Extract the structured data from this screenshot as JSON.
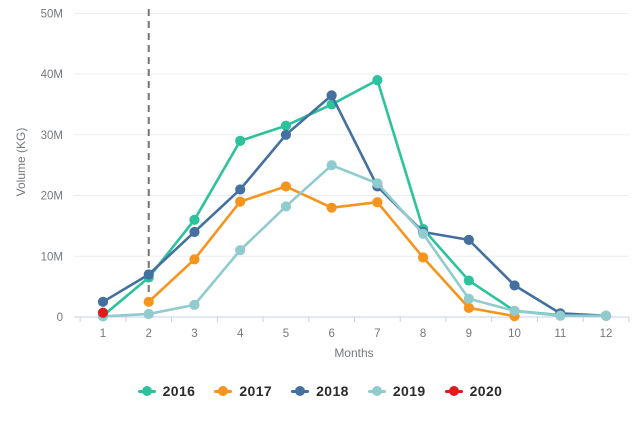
{
  "page": {
    "background": "#ffffff"
  },
  "chart_data": {
    "type": "line",
    "title": "",
    "xlabel": "Months",
    "ylabel": "Volume (KG)",
    "x": [
      1,
      2,
      3,
      4,
      5,
      6,
      7,
      8,
      9,
      10,
      11,
      12
    ],
    "ylim_millions": [
      0,
      50
    ],
    "ytick_labels": [
      "0",
      "10M",
      "20M",
      "30M",
      "40M",
      "50M"
    ],
    "grid": true,
    "legend_position": "bottom",
    "reference_line": {
      "type": "vertical",
      "style": "dashed",
      "x": 2,
      "color": "#757575"
    },
    "colors": {
      "axis": "#c7d0e4",
      "grid": "#ededed",
      "labels": "#74787c"
    },
    "series": [
      {
        "name": "2016",
        "color": "#2cc39c",
        "values_millions": [
          0.2,
          6.5,
          16,
          29,
          31.5,
          35,
          39,
          14.5,
          6,
          1,
          0.3,
          null
        ]
      },
      {
        "name": "2017",
        "color": "#f7941e",
        "values_millions": [
          null,
          2.5,
          9.5,
          19,
          21.5,
          18,
          18.9,
          9.8,
          1.5,
          0.15,
          null,
          null
        ]
      },
      {
        "name": "2018",
        "color": "#44709f",
        "values_millions": [
          2.5,
          7,
          14,
          21,
          30,
          36.5,
          21.5,
          14,
          12.7,
          5.2,
          0.6,
          0.2
        ]
      },
      {
        "name": "2019",
        "color": "#90cbcd",
        "values_millions": [
          0.1,
          0.5,
          2,
          11,
          18.2,
          25,
          22,
          13.7,
          3,
          1,
          0.2,
          0.2
        ]
      },
      {
        "name": "2020",
        "color": "#e01b1b",
        "values_millions": [
          0.7,
          null,
          null,
          null,
          null,
          null,
          null,
          null,
          null,
          null,
          null,
          null
        ]
      }
    ]
  }
}
